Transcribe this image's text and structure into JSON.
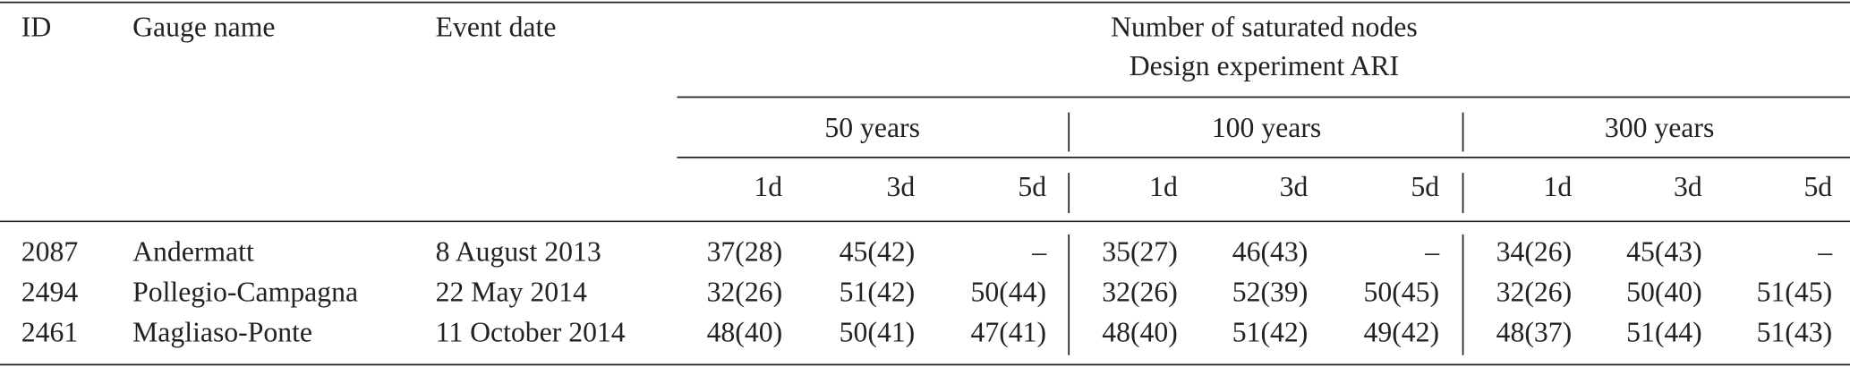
{
  "table": {
    "header": {
      "id": "ID",
      "gauge_name": "Gauge name",
      "event_date": "Event date",
      "group_title": [
        "Number of saturated nodes",
        "Design experiment ARI"
      ],
      "periods": [
        "50 years",
        "100 years",
        "300 years"
      ],
      "durations": [
        "1d",
        "3d",
        "5d",
        "1d",
        "3d",
        "5d",
        "1d",
        "3d",
        "5d"
      ]
    },
    "rows": [
      {
        "id": "2087",
        "gauge_name": "Andermatt",
        "event_date": "8 August 2013",
        "values": [
          "37(28)",
          "45(42)",
          "–",
          "35(27)",
          "46(43)",
          "–",
          "34(26)",
          "45(43)",
          "–"
        ]
      },
      {
        "id": "2494",
        "gauge_name": "Pollegio-Campagna",
        "event_date": "22 May 2014",
        "values": [
          "32(26)",
          "51(42)",
          "50(44)",
          "32(26)",
          "52(39)",
          "50(45)",
          "32(26)",
          "50(40)",
          "51(45)"
        ]
      },
      {
        "id": "2461",
        "gauge_name": "Magliaso-Ponte",
        "event_date": "11 October 2014",
        "values": [
          "48(40)",
          "50(41)",
          "47(41)",
          "48(40)",
          "51(42)",
          "49(42)",
          "48(37)",
          "51(44)",
          "51(43)"
        ]
      }
    ]
  }
}
